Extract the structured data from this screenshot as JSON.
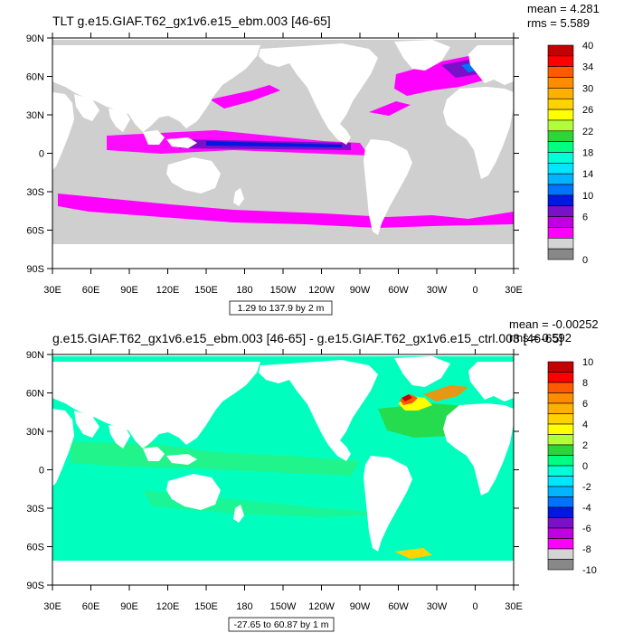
{
  "panels": [
    {
      "title": "TLT g.e15.GIAF.T62_gx1v6.e15_ebm.003 [46-65]",
      "stats": {
        "mean": "mean = 4.281",
        "rms": "rms = 5.589"
      },
      "range_note": "1.29 to 137.9 by 2 m",
      "colorbar": {
        "labels": [
          "40",
          "34",
          "30",
          "26",
          "22",
          "18",
          "14",
          "10",
          "6",
          "0"
        ],
        "colors": [
          "#c40000",
          "#ff0000",
          "#ff5a00",
          "#ff8c00",
          "#ffb000",
          "#ffd200",
          "#ffff00",
          "#b0ff3a",
          "#2cd63a",
          "#00ff80",
          "#00ffd8",
          "#00e6ff",
          "#00b4ff",
          "#0074ff",
          "#0018e0",
          "#7a10c8",
          "#c000e0",
          "#ff00ff",
          "#d4d4d4",
          "#888888"
        ]
      }
    },
    {
      "title": "g.e15.GIAF.T62_gx1v6.e15_ebm.003 [46-65] - g.e15.GIAF.T62_gx1v6.e15_ctrl.003 [46-65]",
      "stats": {
        "mean": "mean = -0.00252",
        "rms": "rms = 0.592"
      },
      "range_note": "-27.65 to 60.87 by 1 m",
      "colorbar": {
        "labels": [
          "10",
          "8",
          "6",
          "4",
          "2",
          "0",
          "-2",
          "-4",
          "-6",
          "-8",
          "-10"
        ],
        "colors": [
          "#c40000",
          "#ff0000",
          "#ff5a00",
          "#ff8c00",
          "#ffb000",
          "#ffd200",
          "#ffff00",
          "#b0ff3a",
          "#2cd63a",
          "#00ff80",
          "#00ffd8",
          "#00e6ff",
          "#00b4ff",
          "#0074ff",
          "#0018e0",
          "#7a10c8",
          "#c000e0",
          "#ff00ff",
          "#d4d4d4",
          "#888888"
        ]
      }
    }
  ],
  "lat_labels": [
    "90N",
    "60N",
    "30N",
    "0",
    "30S",
    "60S",
    "90S"
  ],
  "lon_labels": [
    "30E",
    "60E",
    "90E",
    "120E",
    "150E",
    "180",
    "150W",
    "120W",
    "90W",
    "60W",
    "30W",
    "0",
    "30E"
  ],
  "colors": {
    "ocean_base_top": "#cfcfcf",
    "ocean_base_bottom": "#00ffbf",
    "land": "#ffffff"
  }
}
